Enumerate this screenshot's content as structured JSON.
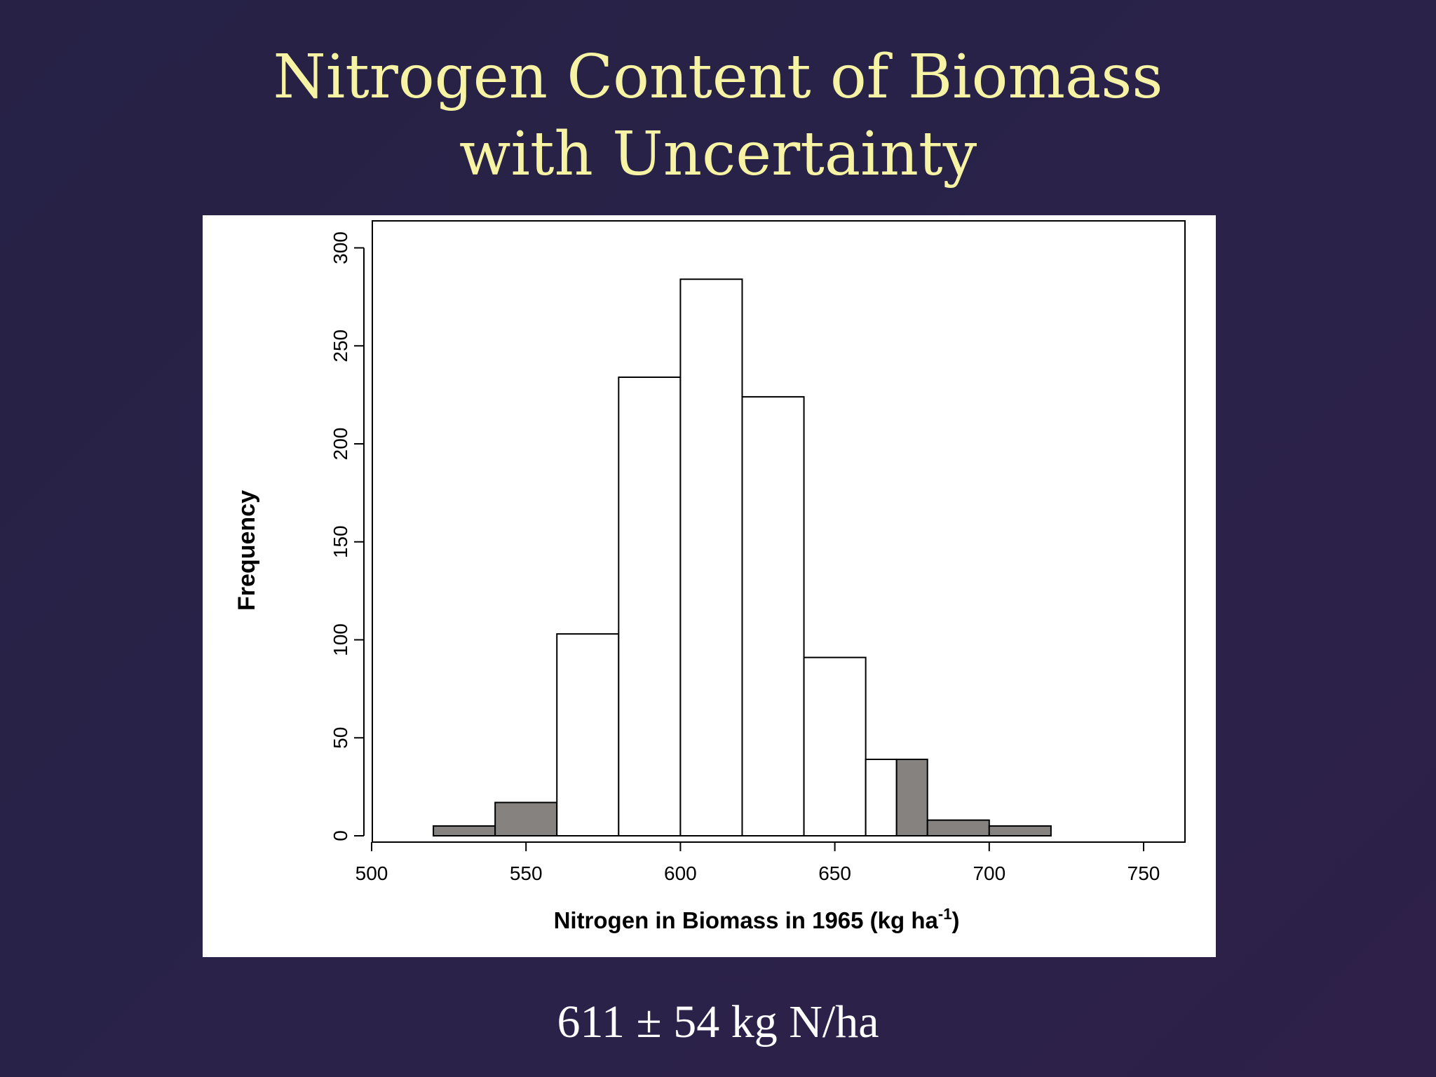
{
  "title": {
    "line1": "Nitrogen Content of Biomass",
    "line2": "with Uncertainty"
  },
  "footer": {
    "summary": "611 ± 54 kg N/ha"
  },
  "colors": {
    "background": "#282247",
    "title": "#f7f3a4",
    "footer": "#ffffff",
    "bar_fill_white": "#ffffff",
    "bar_fill_gray": "#858280",
    "bar_stroke": "#000000"
  },
  "chart_data": {
    "type": "bar",
    "subtype": "histogram",
    "title": "",
    "xlabel": "Nitrogen in Biomass in 1965 (kg ha⁻¹)",
    "xlabel_parts": {
      "main": "Nitrogen in Biomass in 1965 (kg ha",
      "sup": "-1",
      "end": ")"
    },
    "ylabel": "Frequency",
    "xlim": [
      500,
      760
    ],
    "ylim": [
      0,
      300
    ],
    "xticks": [
      500,
      550,
      600,
      650,
      700,
      750
    ],
    "yticks": [
      0,
      50,
      100,
      150,
      200,
      250,
      300
    ],
    "grid": false,
    "bins": [
      {
        "x0": 520,
        "x1": 540,
        "count": 5,
        "fill": "gray"
      },
      {
        "x0": 540,
        "x1": 560,
        "count": 17,
        "fill": "gray"
      },
      {
        "x0": 560,
        "x1": 580,
        "count": 103,
        "fill": "white"
      },
      {
        "x0": 580,
        "x1": 600,
        "count": 234,
        "fill": "white"
      },
      {
        "x0": 600,
        "x1": 620,
        "count": 284,
        "fill": "white"
      },
      {
        "x0": 620,
        "x1": 640,
        "count": 224,
        "fill": "white"
      },
      {
        "x0": 640,
        "x1": 660,
        "count": 91,
        "fill": "white"
      },
      {
        "x0": 660,
        "x1": 670,
        "count": 39,
        "fill": "white"
      },
      {
        "x0": 670,
        "x1": 680,
        "count": 39,
        "fill": "gray"
      },
      {
        "x0": 680,
        "x1": 700,
        "count": 8,
        "fill": "gray"
      },
      {
        "x0": 700,
        "x1": 720,
        "count": 5,
        "fill": "gray"
      }
    ]
  }
}
